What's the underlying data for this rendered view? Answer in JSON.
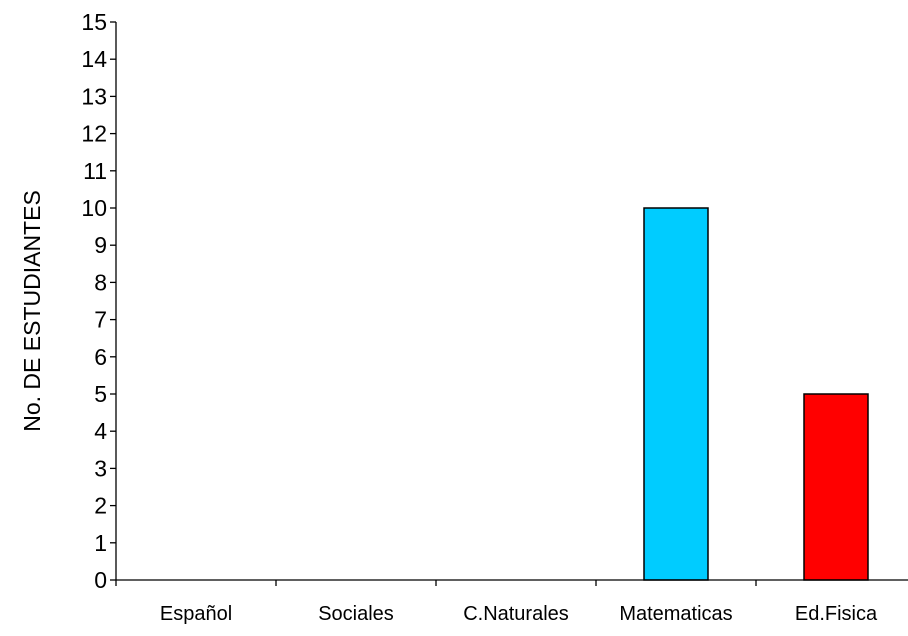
{
  "chart_data": {
    "type": "bar",
    "title": "",
    "xlabel": "",
    "ylabel": "No. DE ESTUDIANTES",
    "categories": [
      "Español",
      "Sociales",
      "C.Naturales",
      "Matematicas",
      "Ed.Fisica"
    ],
    "values": [
      0,
      0,
      0,
      10,
      5
    ],
    "bar_colors": [
      "#00CCFF",
      "#00CCFF",
      "#00CCFF",
      "#00CCFF",
      "#FF0000"
    ],
    "ylim": [
      0,
      15
    ],
    "yticks": [
      0,
      1,
      2,
      3,
      4,
      5,
      6,
      7,
      8,
      9,
      10,
      11,
      12,
      13,
      14,
      15
    ],
    "grid": false,
    "legend": "none"
  }
}
